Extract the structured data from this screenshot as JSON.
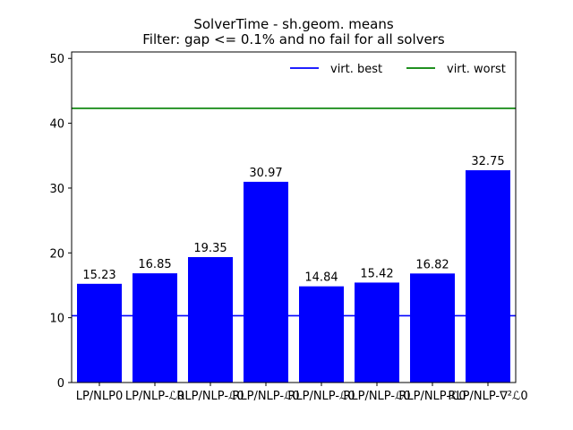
{
  "chart_data": {
    "type": "bar",
    "title": "SolverTime - sh.geom. means",
    "subtitle": "Filter: gap <= 0.1% and no fail for all solvers",
    "xlabel": "",
    "ylabel": "",
    "categories": [
      "LP/NLP0",
      "LP/NLP-ℒ0",
      "RLP/NLP-ℒ0",
      "RLP/NLP-ℒ0",
      "RLP/NLP-ℒ0",
      "RLP/NLP-ℒ0",
      "RLP/NLP-ℒ0",
      "RLP/NLP-∇²ℒ0"
    ],
    "values": [
      15.23,
      16.85,
      19.35,
      30.97,
      14.84,
      15.42,
      16.82,
      32.75
    ],
    "value_labels": [
      "15.23",
      "16.85",
      "19.35",
      "30.97",
      "14.84",
      "15.42",
      "16.82",
      "32.75"
    ],
    "bar_color": "#0000ff",
    "ylim": [
      0,
      51
    ],
    "yticks": [
      0,
      10,
      20,
      30,
      40,
      50
    ],
    "ytick_labels": [
      "0",
      "10",
      "20",
      "30",
      "40",
      "50"
    ],
    "reference_lines": [
      {
        "name": "virt. best",
        "value": 10.3,
        "color": "#0000ff"
      },
      {
        "name": "virt. worst",
        "value": 42.3,
        "color": "#008000"
      }
    ],
    "legend": {
      "location": "top-right",
      "items": [
        "virt. best",
        "virt. worst"
      ]
    },
    "grid": false
  }
}
